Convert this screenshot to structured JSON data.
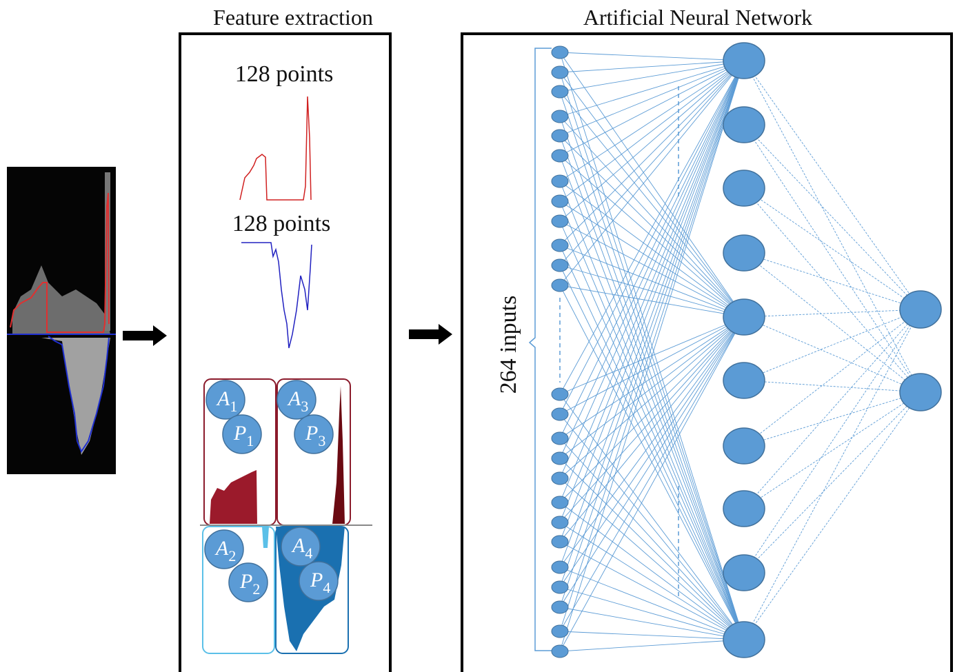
{
  "titles": {
    "feature_extraction": "Feature extraction",
    "ann": "Artificial Neural Network"
  },
  "waveforms": [
    {
      "label": "128 points"
    },
    {
      "label": "128 points"
    }
  ],
  "inputs_label": "264 inputs",
  "areas": [
    {
      "a": {
        "letter": "A",
        "sub": "1"
      },
      "p": {
        "letter": "P",
        "sub": "1"
      }
    },
    {
      "a": {
        "letter": "A",
        "sub": "3"
      },
      "p": {
        "letter": "P",
        "sub": "3"
      }
    },
    {
      "a": {
        "letter": "A",
        "sub": "2"
      },
      "p": {
        "letter": "P",
        "sub": "2"
      }
    },
    {
      "a": {
        "letter": "A",
        "sub": "4"
      },
      "p": {
        "letter": "P",
        "sub": "4"
      }
    }
  ]
}
